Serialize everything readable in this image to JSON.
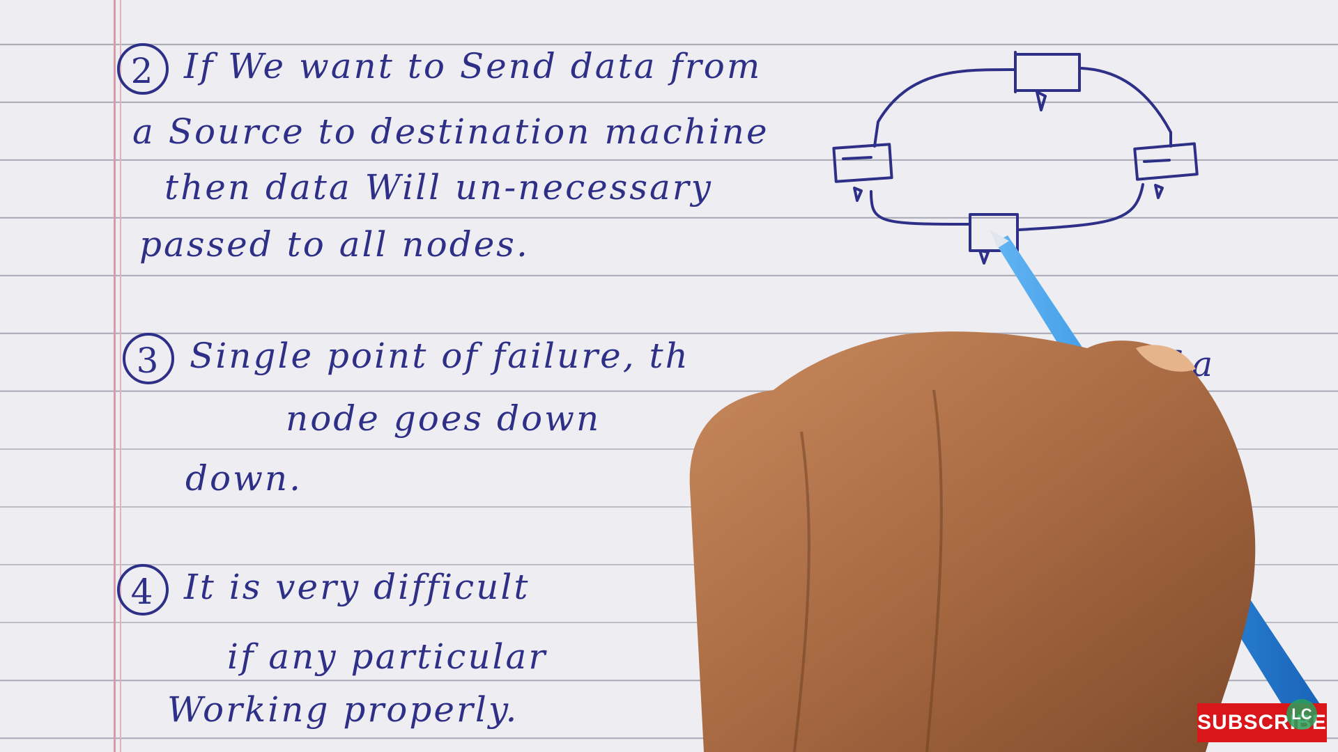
{
  "notes": {
    "point2": {
      "number": "2",
      "line1": "If We want to Send data from",
      "line2": "a Source to destination machine",
      "line3": "then data Will un-necessary",
      "line4": "passed to all nodes."
    },
    "point3": {
      "number": "3",
      "line1": "Single point of failure, th",
      "line1_tail": "f a",
      "line2": "node goes down",
      "line3": "down."
    },
    "point4": {
      "number": "4",
      "line1": "It is very difficult",
      "line2": "if any particular",
      "line3": "Working properly."
    }
  },
  "overlay": {
    "subscribe_label": "SUBSCRIBE",
    "logo_text": "LC",
    "subscribe_color": "#d9161a"
  },
  "colors": {
    "ink": "#2e2f86",
    "paper": "#eeedf2",
    "rule_line": "#a9aab6",
    "margin_line": "#d79aa6",
    "pen": "#2f8fe0",
    "skin": "#b7754c"
  }
}
